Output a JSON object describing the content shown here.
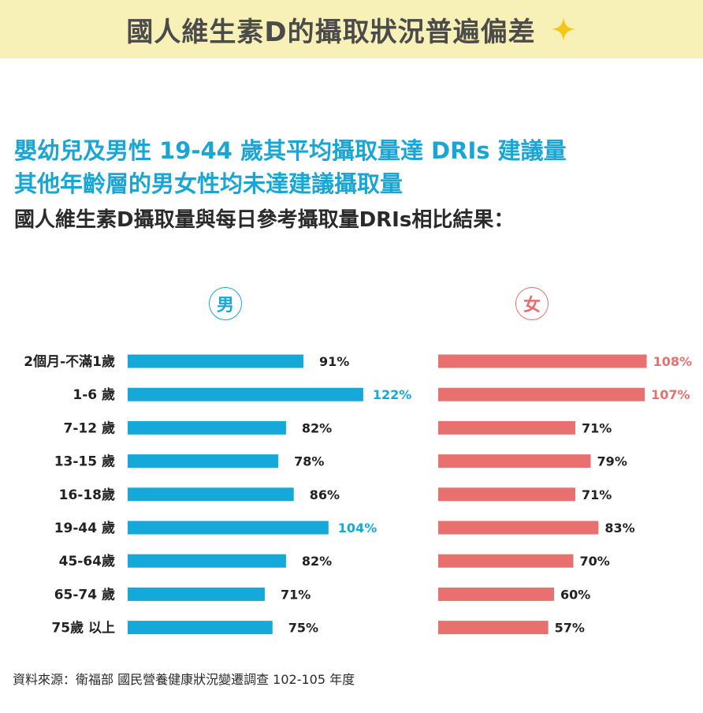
{
  "banner": {
    "title": "國人維生素D的攝取狀況普遍偏差"
  },
  "headline": {
    "line1": "嬰幼兒及男性 19-44 歲其平均攝取量達 DRIs 建議量",
    "line2": "其他年齡層的男女性均未達建議攝取量"
  },
  "subtitle": "國人維生素D攝取量與每日參考攝取量DRIs相比結果：",
  "legend": {
    "male": "男",
    "female": "女"
  },
  "source": "資料來源：衛福部 國民營養健康狀況變遷調查 102-105 年度",
  "colors": {
    "male": "#14a9d8",
    "female": "#e8706f",
    "highlight_male_text": "#14a9d8",
    "highlight_female_text": "#e8706f",
    "normal_text": "#222222",
    "banner_bg": "#f7f0b7",
    "headline": "#1aa6d4"
  },
  "chart_data": {
    "type": "bar",
    "orientation": "horizontal",
    "categories": [
      "2個月-不滿1歲",
      "1-6 歲",
      "7-12 歲",
      "13-15 歲",
      "16-18歲",
      "19-44 歲",
      "45-64歲",
      "65-74 歲",
      "75歲 以上"
    ],
    "series": [
      {
        "name": "男",
        "values": [
          91,
          122,
          82,
          78,
          86,
          104,
          82,
          71,
          75
        ],
        "labels": [
          "91%",
          "122%",
          "82%",
          "78%",
          "86%",
          "104%",
          "82%",
          "71%",
          "75%"
        ]
      },
      {
        "name": "女",
        "values": [
          108,
          107,
          71,
          79,
          71,
          83,
          70,
          60,
          57
        ],
        "labels": [
          "108%",
          "107%",
          "71%",
          "79%",
          "71%",
          "83%",
          "70%",
          "60%",
          "57%"
        ]
      }
    ],
    "unit": "%",
    "threshold": 100,
    "grid": false
  }
}
